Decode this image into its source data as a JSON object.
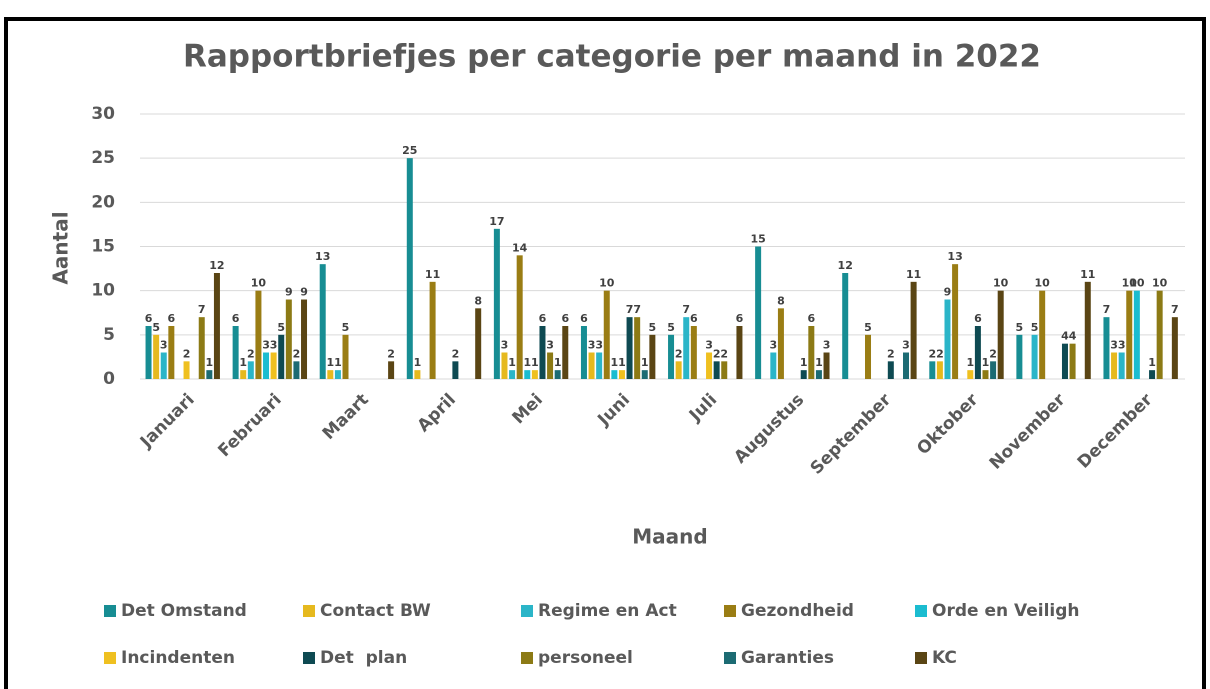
{
  "chart_data": {
    "type": "bar",
    "title": "Rapportbriefjes per categorie per maand in 2022",
    "x_label": "Maand",
    "y_label": "Aantal",
    "categories": [
      "Januari",
      "Februari",
      "Maart",
      "April",
      "Mei",
      "Juni",
      "Juli",
      "Augustus",
      "September",
      "Oktober",
      "November",
      "December"
    ],
    "series": [
      {
        "name": "Det Omstand",
        "color": "#178d93",
        "values": [
          6,
          6,
          13,
          25,
          17,
          6,
          5,
          15,
          12,
          2,
          5,
          7
        ]
      },
      {
        "name": "Contact BW",
        "color": "#e6b91e",
        "values": [
          5,
          1,
          1,
          1,
          3,
          3,
          2,
          0,
          0,
          2,
          0,
          3
        ]
      },
      {
        "name": "Regime en Act",
        "color": "#2bb5c8",
        "values": [
          3,
          2,
          1,
          0,
          1,
          3,
          7,
          3,
          0,
          9,
          5,
          3
        ]
      },
      {
        "name": "Gezondheid",
        "color": "#9a7d14",
        "values": [
          6,
          10,
          5,
          11,
          14,
          10,
          6,
          8,
          5,
          13,
          10,
          10
        ]
      },
      {
        "name": "Orde en Veiligh",
        "color": "#1bbcd0",
        "values": [
          0,
          3,
          0,
          0,
          1,
          1,
          0,
          0,
          0,
          0,
          0,
          10
        ]
      },
      {
        "name": "Incindenten",
        "color": "#efc020",
        "values": [
          2,
          3,
          0,
          0,
          1,
          1,
          3,
          0,
          0,
          1,
          0,
          0
        ]
      },
      {
        "name": "Det  plan",
        "color": "#0e4a52",
        "values": [
          0,
          5,
          0,
          2,
          6,
          7,
          2,
          1,
          2,
          6,
          4,
          1
        ]
      },
      {
        "name": "personeel",
        "color": "#8c7a15",
        "values": [
          7,
          9,
          0,
          0,
          3,
          7,
          2,
          6,
          0,
          1,
          4,
          10
        ]
      },
      {
        "name": "Garanties",
        "color": "#1c6b73",
        "values": [
          1,
          2,
          0,
          0,
          1,
          1,
          0,
          1,
          3,
          2,
          0,
          0
        ]
      },
      {
        "name": "KC",
        "color": "#5a4514",
        "values": [
          12,
          9,
          2,
          8,
          6,
          5,
          6,
          3,
          11,
          10,
          11,
          7
        ]
      }
    ],
    "ylim": [
      0,
      30
    ],
    "yticks": [
      0,
      5,
      10,
      15,
      20,
      25,
      30
    ],
    "grid": true,
    "legend": "bottom"
  }
}
